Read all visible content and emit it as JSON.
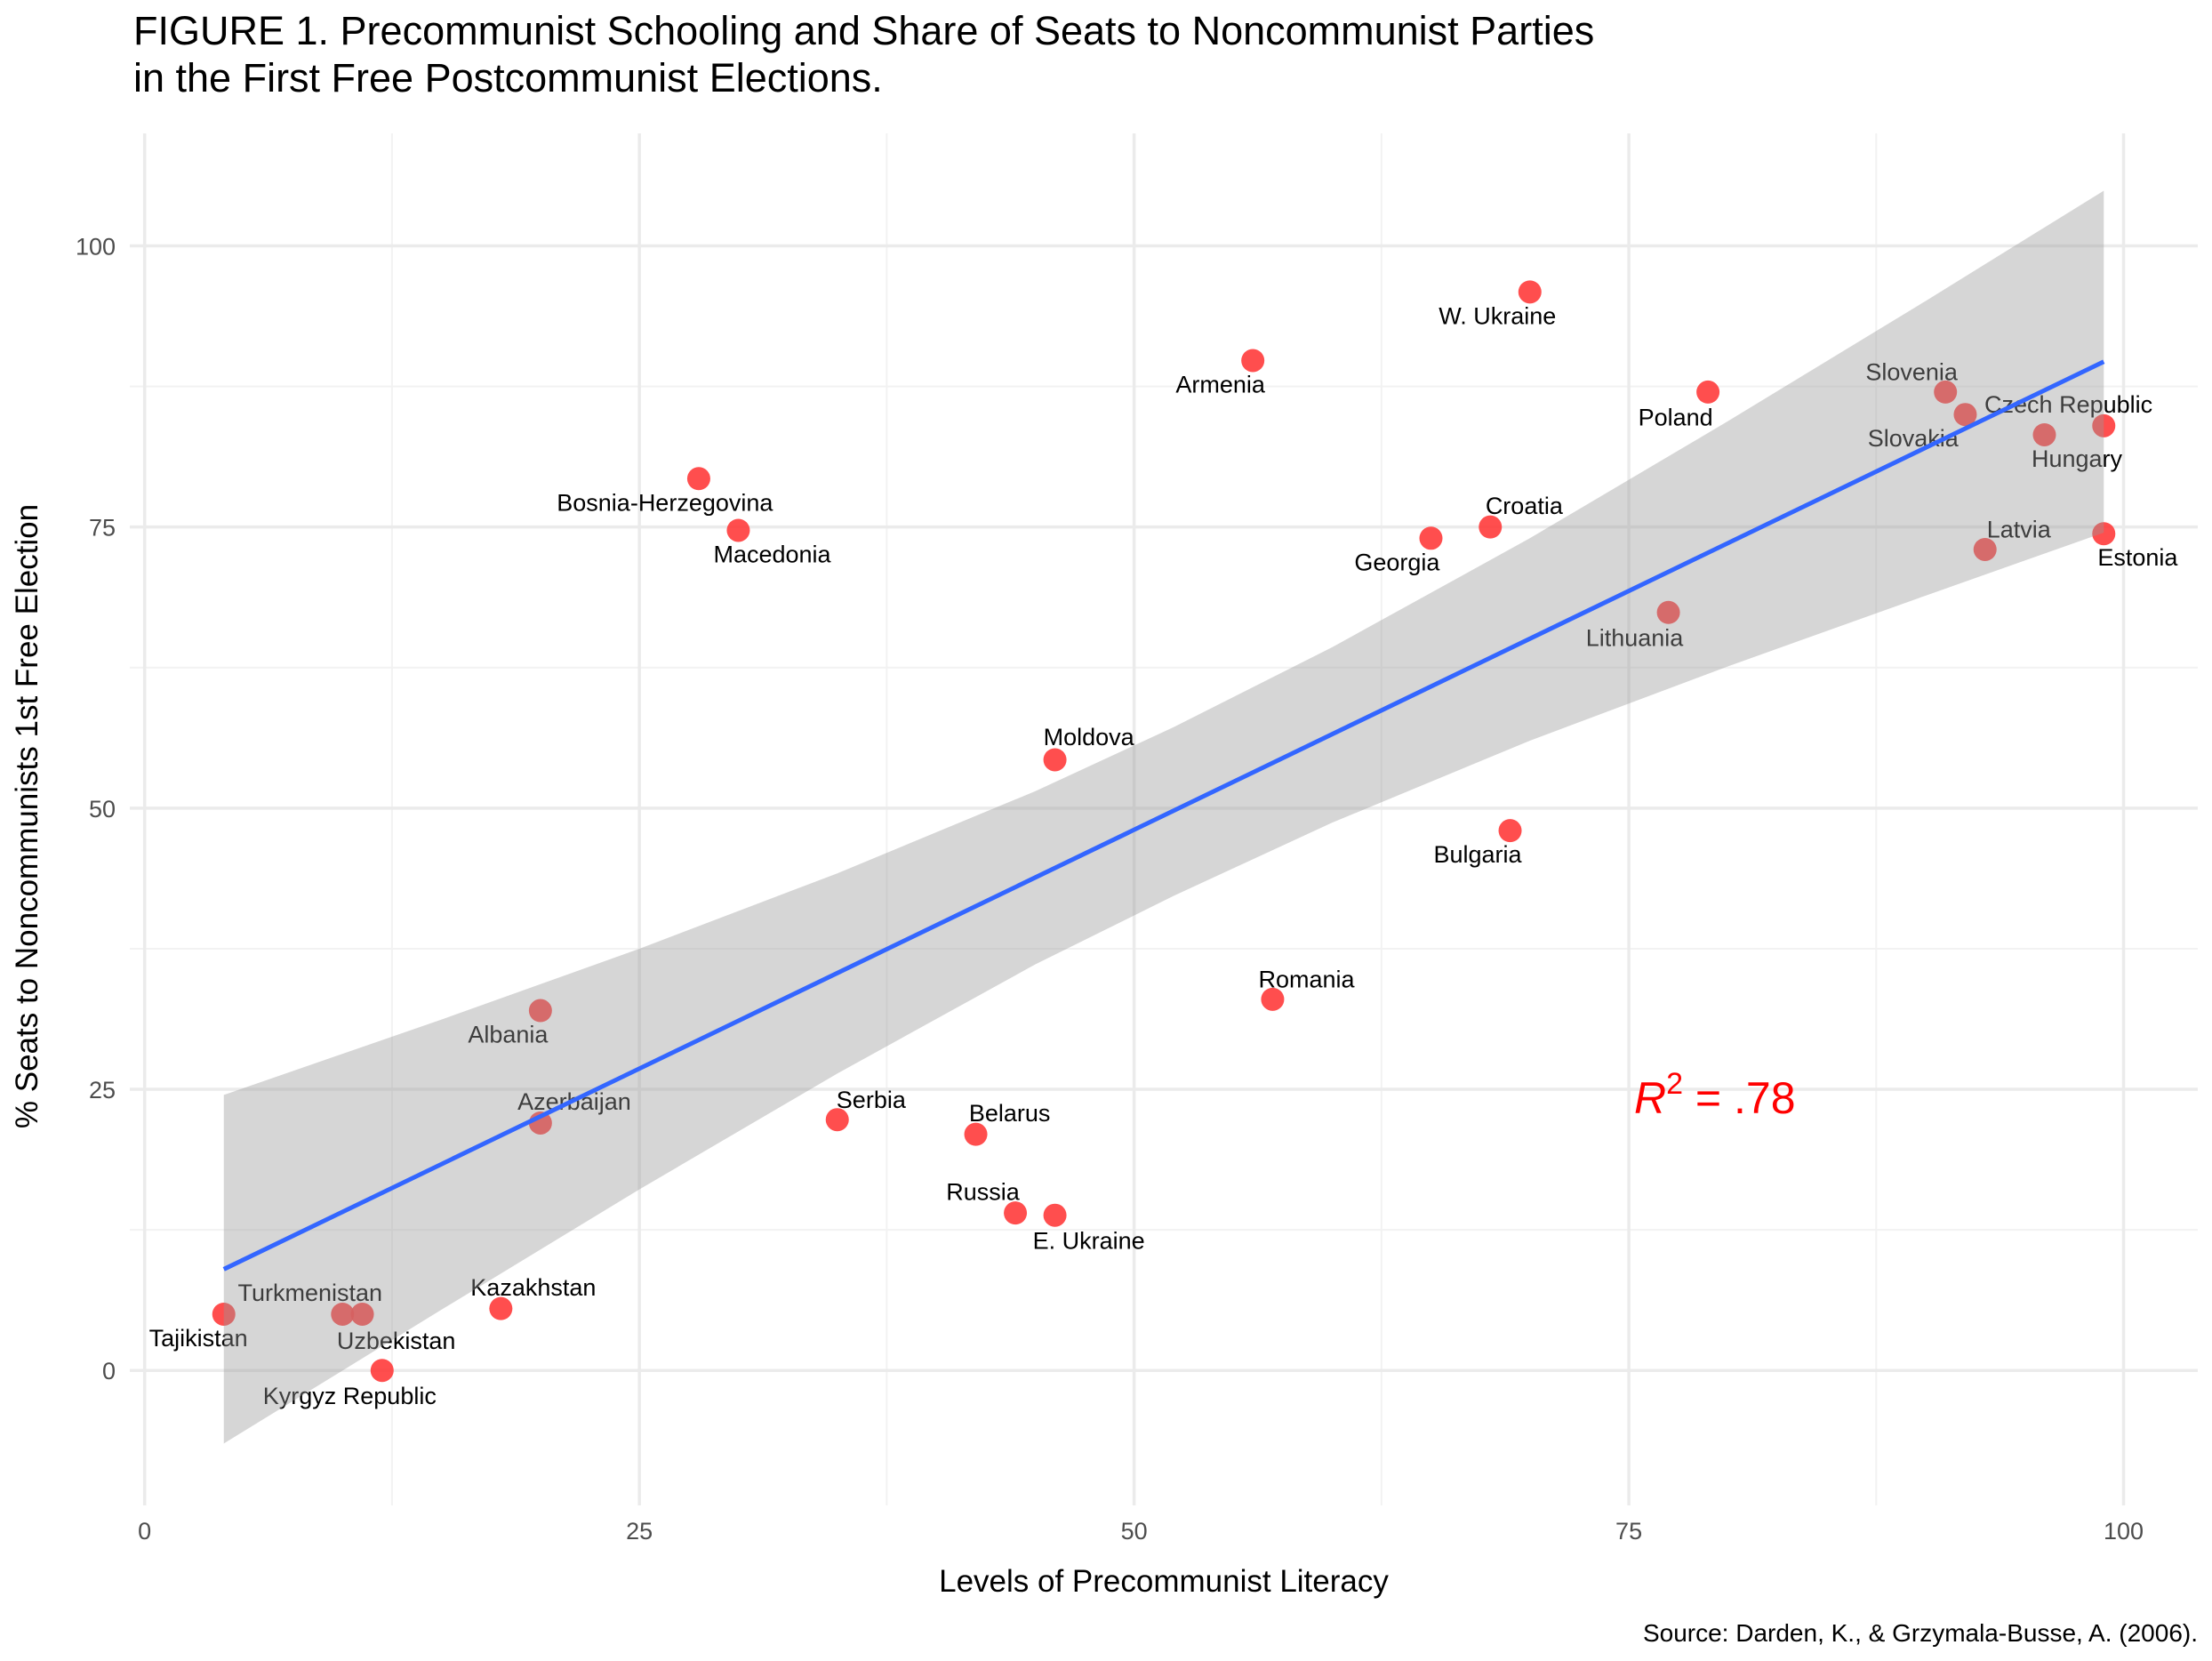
{
  "chart_data": {
    "type": "scatter",
    "title": "FIGURE 1. Precommunist Schooling and Share of Seats to Noncommunist Parties",
    "title_line2": "in the First Free Postcommunist Elections.",
    "xlabel": "Levels of Precommunist Literacy",
    "ylabel": "% Seats to Noncommunists 1st Free Election",
    "source": "Source: Darden, K., & Grzymala-Busse, A. (2006).",
    "annotation": {
      "base": "R",
      "sup": "2",
      "rest": " = .78"
    },
    "xlim": [
      -0.75,
      103.75
    ],
    "ylim": [
      -12,
      110
    ],
    "xticks": [
      0,
      25,
      50,
      75,
      100
    ],
    "yticks": [
      0,
      25,
      50,
      75,
      100
    ],
    "grid": true,
    "point_color": "#ff3b3b",
    "line_color": "#3366ff",
    "ribbon_color": "#999999",
    "annotation_color": "#ff0000",
    "points": [
      {
        "label": "Tajikistan",
        "x": 4,
        "y": 5
      },
      {
        "label": "Turkmenistan",
        "x": 10,
        "y": 5
      },
      {
        "label": "Uzbekistan",
        "x": 11,
        "y": 5
      },
      {
        "label": "Kyrgyz Republic",
        "x": 12,
        "y": 0
      },
      {
        "label": "Kazakhstan",
        "x": 18,
        "y": 5.5
      },
      {
        "label": "Albania",
        "x": 20,
        "y": 32
      },
      {
        "label": "Azerbaijan",
        "x": 20,
        "y": 22
      },
      {
        "label": "Bosnia-Herzegovina",
        "x": 28,
        "y": 79.3
      },
      {
        "label": "Macedonia",
        "x": 30,
        "y": 74.7
      },
      {
        "label": "Serbia",
        "x": 35,
        "y": 22.3
      },
      {
        "label": "Belarus",
        "x": 42,
        "y": 21
      },
      {
        "label": "Russia",
        "x": 44,
        "y": 14
      },
      {
        "label": "E. Ukraine",
        "x": 46,
        "y": 13.8
      },
      {
        "label": "Moldova",
        "x": 46,
        "y": 54.3
      },
      {
        "label": "Armenia",
        "x": 56,
        "y": 89.8
      },
      {
        "label": "Romania",
        "x": 57,
        "y": 33
      },
      {
        "label": "Georgia",
        "x": 65,
        "y": 74
      },
      {
        "label": "Croatia",
        "x": 68,
        "y": 75
      },
      {
        "label": "Bulgaria",
        "x": 69,
        "y": 48
      },
      {
        "label": "W. Ukraine",
        "x": 70,
        "y": 95.9
      },
      {
        "label": "Lithuania",
        "x": 77,
        "y": 67.4
      },
      {
        "label": "Poland",
        "x": 79,
        "y": 87
      },
      {
        "label": "Slovenia",
        "x": 91,
        "y": 87
      },
      {
        "label": "Slovakia",
        "x": 92,
        "y": 85
      },
      {
        "label": "Latvia",
        "x": 93,
        "y": 73
      },
      {
        "label": "Hungary",
        "x": 96,
        "y": 83.2
      },
      {
        "label": "Czech Republic",
        "x": 99,
        "y": 84
      },
      {
        "label": "Estonia",
        "x": 99,
        "y": 74.4
      }
    ],
    "fit": {
      "x": [
        4,
        15,
        25,
        35,
        45,
        52,
        60,
        70,
        80,
        90,
        99
      ],
      "y": [
        9.0,
        18.3,
        26.8,
        35.3,
        43.8,
        49.7,
        56.5,
        65.0,
        73.5,
        82.0,
        89.7
      ],
      "lower": [
        -6.5,
        5.4,
        16.1,
        26.4,
        36.1,
        42.2,
        48.7,
        56.0,
        62.6,
        68.9,
        74.5
      ],
      "upper": [
        24.5,
        31.2,
        37.5,
        44.2,
        51.5,
        57.2,
        64.3,
        74.0,
        84.4,
        95.1,
        104.9
      ]
    }
  }
}
